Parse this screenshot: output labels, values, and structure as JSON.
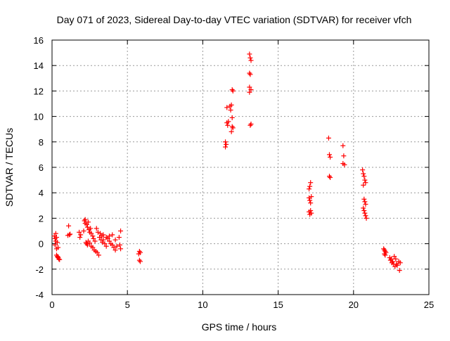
{
  "chart_data": {
    "type": "scatter",
    "title": "Day 071 of 2023, Sidereal Day-to-day VTEC variation (SDTVAR) for receiver vfch",
    "xlabel": "GPS time / hours",
    "ylabel": "SDTVAR / TECUs",
    "xlim": [
      0,
      25
    ],
    "ylim": [
      -4,
      16
    ],
    "xticks": [
      0,
      5,
      10,
      15,
      20,
      25
    ],
    "yticks": [
      -4,
      -2,
      0,
      2,
      4,
      6,
      8,
      10,
      12,
      14,
      16
    ],
    "grid": true,
    "marker": "+",
    "colors": {
      "points": "#ff0000",
      "grid": "#999999",
      "axes": "#000000"
    },
    "series": [
      {
        "name": "SDTVAR",
        "points": [
          [
            0.15,
            0.6
          ],
          [
            0.2,
            0.4
          ],
          [
            0.25,
            0.2
          ],
          [
            0.2,
            -0.1
          ],
          [
            0.3,
            -0.4
          ],
          [
            0.25,
            0.8
          ],
          [
            0.3,
            0.5
          ],
          [
            0.35,
            0.1
          ],
          [
            0.4,
            -0.3
          ],
          [
            0.3,
            -0.9
          ],
          [
            0.35,
            -1.0
          ],
          [
            0.4,
            -1.1
          ],
          [
            0.45,
            -1.2
          ],
          [
            0.5,
            -1.25
          ],
          [
            0.4,
            -1.05
          ],
          [
            1.1,
            1.4
          ],
          [
            1.15,
            0.7
          ],
          [
            1.2,
            0.75
          ],
          [
            1.05,
            0.65
          ],
          [
            1.8,
            0.9
          ],
          [
            1.85,
            0.5
          ],
          [
            1.9,
            0.7
          ],
          [
            2.1,
            1.0
          ],
          [
            2.15,
            1.8
          ],
          [
            2.2,
            1.9
          ],
          [
            2.2,
            1.6
          ],
          [
            2.3,
            1.5
          ],
          [
            2.35,
            1.3
          ],
          [
            2.4,
            1.7
          ],
          [
            2.45,
            1.1
          ],
          [
            2.5,
            0.9
          ],
          [
            2.55,
            1.2
          ],
          [
            2.25,
            0.1
          ],
          [
            2.3,
            0.0
          ],
          [
            2.35,
            -0.1
          ],
          [
            2.4,
            0.2
          ],
          [
            2.5,
            0.05
          ],
          [
            2.6,
            -0.2
          ],
          [
            2.7,
            -0.3
          ],
          [
            2.8,
            -0.5
          ],
          [
            2.9,
            -0.6
          ],
          [
            3.0,
            -0.7
          ],
          [
            3.1,
            -0.9
          ],
          [
            2.6,
            0.8
          ],
          [
            2.7,
            0.6
          ],
          [
            2.75,
            0.4
          ],
          [
            2.85,
            0.2
          ],
          [
            2.95,
            1.2
          ],
          [
            3.05,
            0.9
          ],
          [
            3.15,
            0.5
          ],
          [
            3.25,
            0.3
          ],
          [
            3.35,
            0.1
          ],
          [
            3.2,
            0.8
          ],
          [
            3.3,
            0.6
          ],
          [
            3.4,
            0.3
          ],
          [
            3.5,
            0.0
          ],
          [
            3.6,
            -0.2
          ],
          [
            3.7,
            0.4
          ],
          [
            3.8,
            0.2
          ],
          [
            3.9,
            0.0
          ],
          [
            4.0,
            -0.1
          ],
          [
            4.1,
            -0.3
          ],
          [
            4.2,
            -0.5
          ],
          [
            3.4,
            0.7
          ],
          [
            3.6,
            0.5
          ],
          [
            3.8,
            0.6
          ],
          [
            4.0,
            0.7
          ],
          [
            4.2,
            0.3
          ],
          [
            4.3,
            -0.2
          ],
          [
            4.45,
            0.5
          ],
          [
            4.5,
            -0.1
          ],
          [
            4.55,
            -0.4
          ],
          [
            4.55,
            1.0
          ],
          [
            5.8,
            -0.6
          ],
          [
            5.85,
            -0.7
          ],
          [
            5.75,
            -0.8
          ],
          [
            5.8,
            -1.3
          ],
          [
            5.85,
            -1.4
          ],
          [
            11.5,
            7.6
          ],
          [
            11.55,
            7.8
          ],
          [
            11.5,
            8.0
          ],
          [
            11.6,
            10.7
          ],
          [
            11.6,
            9.5
          ],
          [
            11.65,
            9.3
          ],
          [
            11.7,
            9.6
          ],
          [
            11.8,
            10.8
          ],
          [
            11.85,
            10.5
          ],
          [
            11.9,
            10.9
          ],
          [
            11.95,
            9.9
          ],
          [
            11.95,
            9.2
          ],
          [
            11.9,
            8.8
          ],
          [
            12.0,
            9.1
          ],
          [
            11.95,
            12.1
          ],
          [
            12.0,
            12.0
          ],
          [
            13.1,
            14.9
          ],
          [
            13.15,
            14.6
          ],
          [
            13.2,
            14.4
          ],
          [
            13.1,
            13.4
          ],
          [
            13.15,
            13.3
          ],
          [
            13.1,
            12.3
          ],
          [
            13.2,
            12.1
          ],
          [
            13.1,
            11.9
          ],
          [
            13.15,
            9.3
          ],
          [
            13.2,
            9.4
          ],
          [
            17.05,
            4.3
          ],
          [
            17.1,
            4.5
          ],
          [
            17.15,
            4.8
          ],
          [
            17.05,
            3.6
          ],
          [
            17.1,
            3.4
          ],
          [
            17.15,
            3.2
          ],
          [
            17.2,
            3.7
          ],
          [
            17.05,
            2.5
          ],
          [
            17.1,
            2.3
          ],
          [
            17.15,
            2.6
          ],
          [
            17.2,
            2.4
          ],
          [
            18.35,
            8.3
          ],
          [
            18.4,
            7.0
          ],
          [
            18.45,
            6.8
          ],
          [
            18.4,
            5.3
          ],
          [
            18.45,
            5.2
          ],
          [
            19.3,
            7.7
          ],
          [
            19.35,
            6.9
          ],
          [
            19.3,
            6.3
          ],
          [
            19.4,
            6.2
          ],
          [
            20.6,
            5.8
          ],
          [
            20.65,
            5.5
          ],
          [
            20.7,
            5.3
          ],
          [
            20.75,
            5.0
          ],
          [
            20.8,
            4.8
          ],
          [
            20.65,
            4.6
          ],
          [
            20.7,
            3.5
          ],
          [
            20.75,
            3.3
          ],
          [
            20.8,
            3.1
          ],
          [
            20.65,
            2.8
          ],
          [
            20.7,
            2.6
          ],
          [
            20.75,
            2.4
          ],
          [
            20.8,
            2.2
          ],
          [
            20.85,
            2.0
          ],
          [
            22.0,
            -0.4
          ],
          [
            22.05,
            -0.5
          ],
          [
            22.1,
            -0.6
          ],
          [
            22.15,
            -0.7
          ],
          [
            22.05,
            -0.8
          ],
          [
            22.1,
            -0.9
          ],
          [
            22.4,
            -1.1
          ],
          [
            22.45,
            -1.3
          ],
          [
            22.5,
            -1.2
          ],
          [
            22.55,
            -1.5
          ],
          [
            22.6,
            -1.4
          ],
          [
            22.65,
            -1.6
          ],
          [
            22.7,
            -1.0
          ],
          [
            22.75,
            -1.8
          ],
          [
            22.8,
            -1.2
          ],
          [
            22.85,
            -1.6
          ],
          [
            22.9,
            -1.7
          ],
          [
            23.0,
            -1.4
          ],
          [
            23.05,
            -2.1
          ],
          [
            23.1,
            -1.5
          ]
        ]
      }
    ]
  }
}
